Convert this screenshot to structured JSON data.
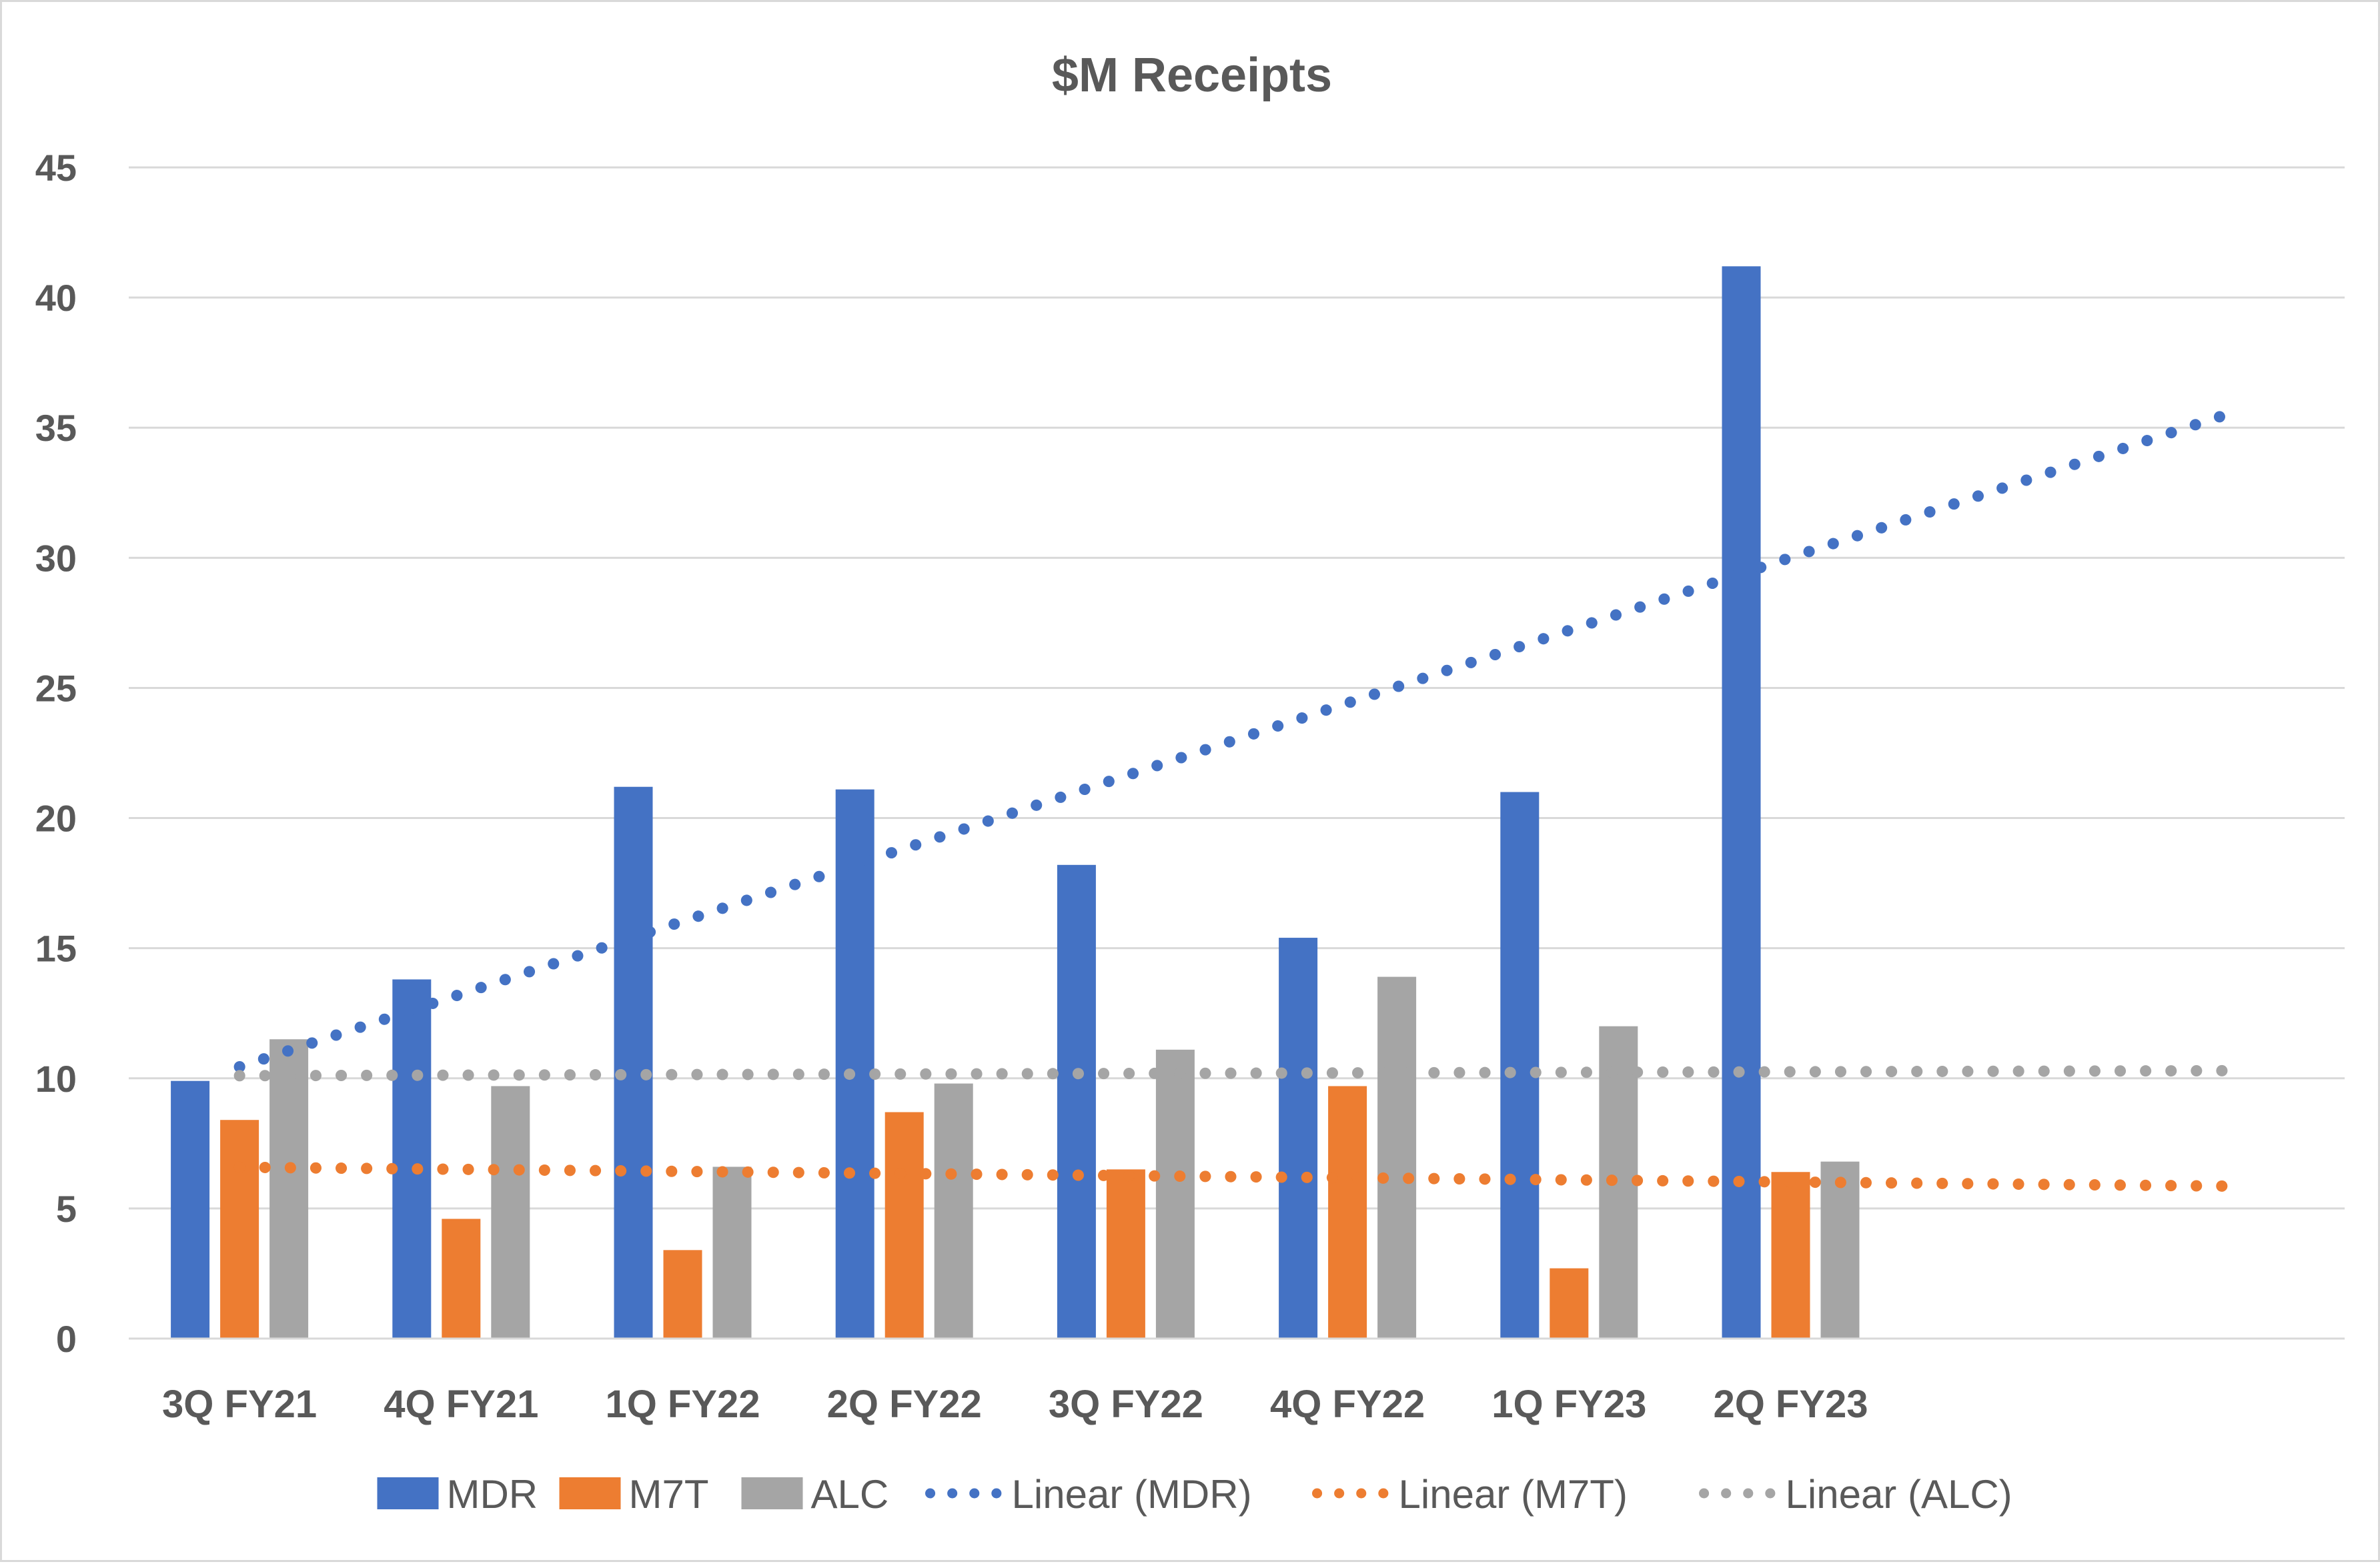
{
  "chart_data": {
    "type": "bar",
    "title": "$M Receipts",
    "xlabel": "",
    "ylabel": "",
    "ylim": [
      0,
      45
    ],
    "yticks": [
      "0",
      "5",
      "10",
      "15",
      "20",
      "25",
      "30",
      "35",
      "40",
      "45"
    ],
    "grid": true,
    "legend_position": "bottom",
    "categories": [
      "3Q FY21",
      "4Q FY21",
      "1Q FY22",
      "2Q FY22",
      "3Q FY22",
      "4Q FY22",
      "1Q FY23",
      "2Q FY23"
    ],
    "series": [
      {
        "name": "MDR",
        "color": "#4472C4",
        "values": [
          9.9,
          13.8,
          21.2,
          21.1,
          18.2,
          15.4,
          21.0,
          41.2
        ]
      },
      {
        "name": "M7T",
        "color": "#ED7D31",
        "values": [
          8.4,
          4.6,
          3.4,
          8.7,
          6.5,
          9.7,
          2.7,
          6.4
        ]
      },
      {
        "name": "ALC",
        "color": "#A5A5A5",
        "values": [
          11.5,
          9.7,
          6.6,
          9.8,
          11.1,
          13.9,
          12.0,
          6.8
        ]
      }
    ],
    "trendlines": [
      {
        "name": "Linear (MDR)",
        "color": "#4472C4",
        "type": "linear",
        "series": "MDR",
        "forward_periods": 2
      },
      {
        "name": "Linear (M7T)",
        "color": "#ED7D31",
        "type": "linear",
        "series": "M7T",
        "forward_periods": 2
      },
      {
        "name": "Linear (ALC)",
        "color": "#A5A5A5",
        "type": "linear",
        "series": "ALC",
        "forward_periods": 2
      }
    ]
  }
}
